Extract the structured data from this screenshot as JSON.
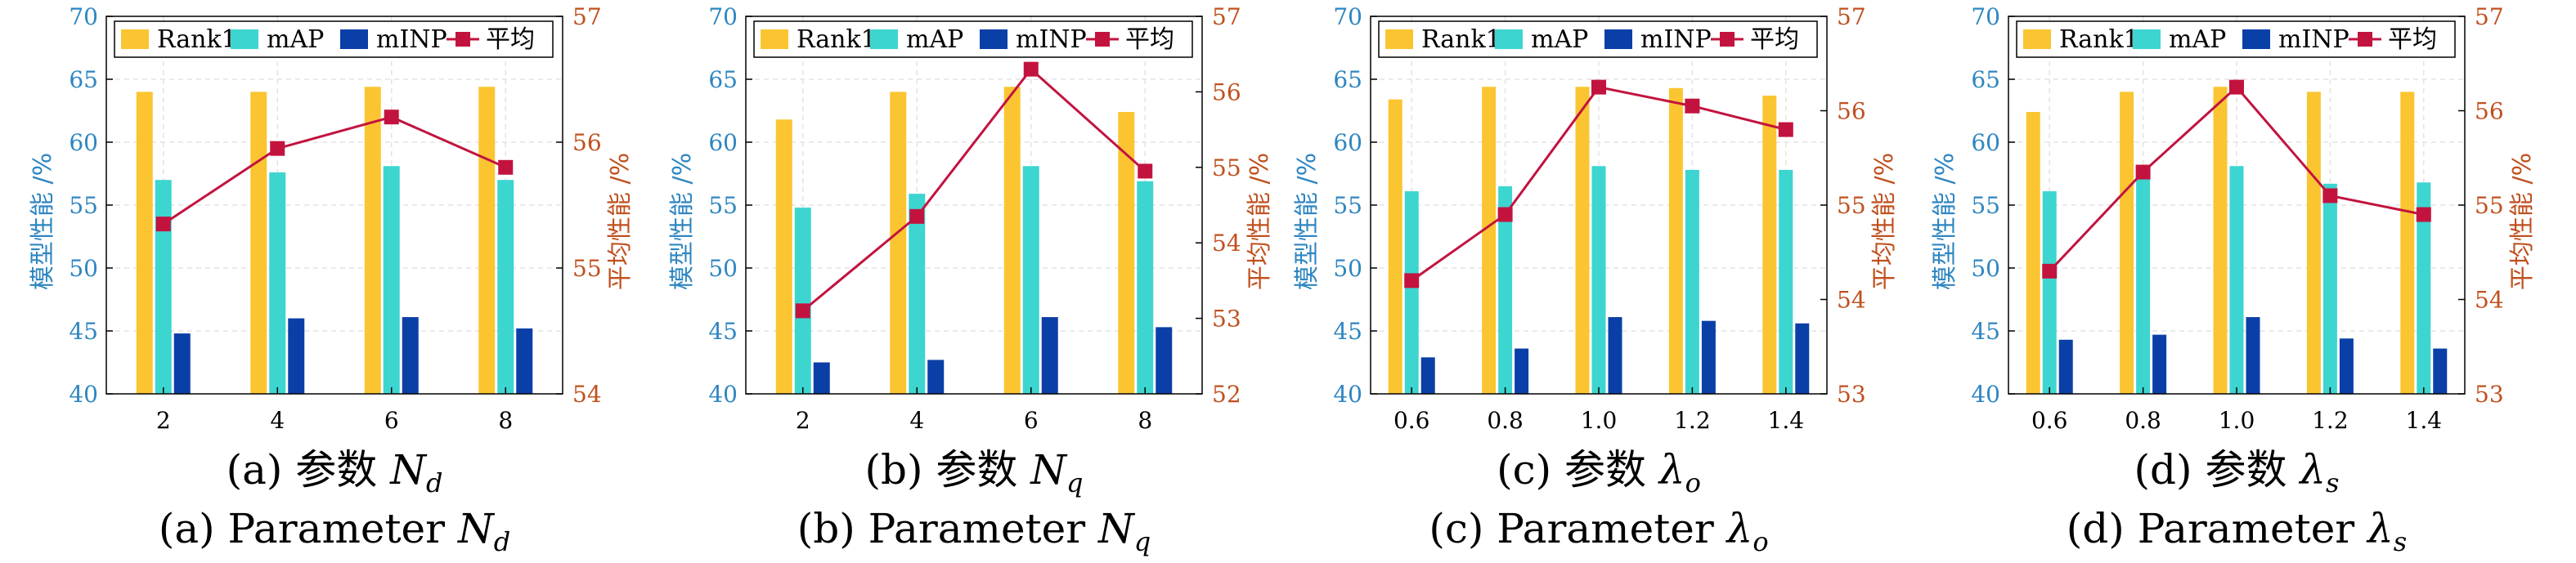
{
  "colors": {
    "rank1": "#FBC531",
    "map": "#3DD5D0",
    "minp": "#0B3FA8",
    "avg": "#C2133F",
    "left_axis": "#2E86C1",
    "right_axis": "#C0501E"
  },
  "legend": [
    "Rank1",
    "mAP",
    "mINP",
    "平均"
  ],
  "left_axis": {
    "label": "模型性能 /%",
    "min": 40,
    "max": 70,
    "ticks": [
      40,
      45,
      50,
      55,
      60,
      65,
      70
    ]
  },
  "chart_data": [
    {
      "type": "bar",
      "caption_cn": "(a) 参数",
      "caption_en": "(a) Parameter",
      "symbol": "N",
      "subscript": "d",
      "categories": [
        "2",
        "4",
        "6",
        "8"
      ],
      "series": [
        {
          "name": "Rank1",
          "values": [
            64.0,
            64.0,
            64.4,
            64.4
          ]
        },
        {
          "name": "mAP",
          "values": [
            57.0,
            57.6,
            58.1,
            57.0
          ]
        },
        {
          "name": "mINP",
          "values": [
            44.8,
            46.0,
            46.1,
            45.2
          ]
        }
      ],
      "line": {
        "name": "平均",
        "values": [
          55.35,
          55.95,
          56.2,
          55.8
        ]
      },
      "ylim_left": [
        40,
        70
      ],
      "ylim_right": [
        54,
        57
      ],
      "right_ticks": [
        54,
        55,
        56,
        57
      ],
      "right_label": "平均性能 /%"
    },
    {
      "type": "bar",
      "caption_cn": "(b) 参数",
      "caption_en": "(b) Parameter",
      "symbol": "N",
      "subscript": "q",
      "categories": [
        "2",
        "4",
        "6",
        "8"
      ],
      "series": [
        {
          "name": "Rank1",
          "values": [
            61.8,
            64.0,
            64.4,
            62.4
          ]
        },
        {
          "name": "mAP",
          "values": [
            54.8,
            55.9,
            58.1,
            56.9
          ]
        },
        {
          "name": "mINP",
          "values": [
            42.5,
            42.7,
            46.1,
            45.3
          ]
        }
      ],
      "line": {
        "name": "平均",
        "values": [
          53.1,
          54.35,
          56.3,
          54.95
        ]
      },
      "ylim_left": [
        40,
        70
      ],
      "ylim_right": [
        52,
        57
      ],
      "right_ticks": [
        52,
        53,
        54,
        55,
        56,
        57
      ],
      "right_label": "平均性能 /%"
    },
    {
      "type": "bar",
      "caption_cn": "(c) 参数",
      "caption_en": "(c) Parameter",
      "symbol": "λ",
      "subscript": "o",
      "categories": [
        "0.6",
        "0.8",
        "1.0",
        "1.2",
        "1.4"
      ],
      "series": [
        {
          "name": "Rank1",
          "values": [
            63.4,
            64.4,
            64.4,
            64.3,
            63.7
          ]
        },
        {
          "name": "mAP",
          "values": [
            56.1,
            56.5,
            58.1,
            57.8,
            57.8
          ]
        },
        {
          "name": "mINP",
          "values": [
            42.9,
            43.6,
            46.1,
            45.8,
            45.6
          ]
        }
      ],
      "line": {
        "name": "平均",
        "values": [
          54.2,
          54.9,
          56.25,
          56.05,
          55.8
        ]
      },
      "ylim_left": [
        40,
        70
      ],
      "ylim_right": [
        53,
        57
      ],
      "right_ticks": [
        53,
        54,
        55,
        56,
        57
      ],
      "right_label": "平均性能 /%"
    },
    {
      "type": "bar",
      "caption_cn": "(d) 参数",
      "caption_en": "(d) Parameter",
      "symbol": "λ",
      "subscript": "s",
      "categories": [
        "0.6",
        "0.8",
        "1.0",
        "1.2",
        "1.4"
      ],
      "series": [
        {
          "name": "Rank1",
          "values": [
            62.4,
            64.0,
            64.4,
            64.0,
            64.0
          ]
        },
        {
          "name": "mAP",
          "values": [
            56.1,
            57.9,
            58.1,
            56.7,
            56.8
          ]
        },
        {
          "name": "mINP",
          "values": [
            44.3,
            44.7,
            46.1,
            44.4,
            43.6
          ]
        }
      ],
      "line": {
        "name": "平均",
        "values": [
          54.3,
          55.35,
          56.25,
          55.1,
          54.9
        ]
      },
      "ylim_left": [
        40,
        70
      ],
      "ylim_right": [
        53,
        57
      ],
      "right_ticks": [
        53,
        54,
        55,
        56,
        57
      ],
      "right_label": "平均性能 /%"
    }
  ]
}
